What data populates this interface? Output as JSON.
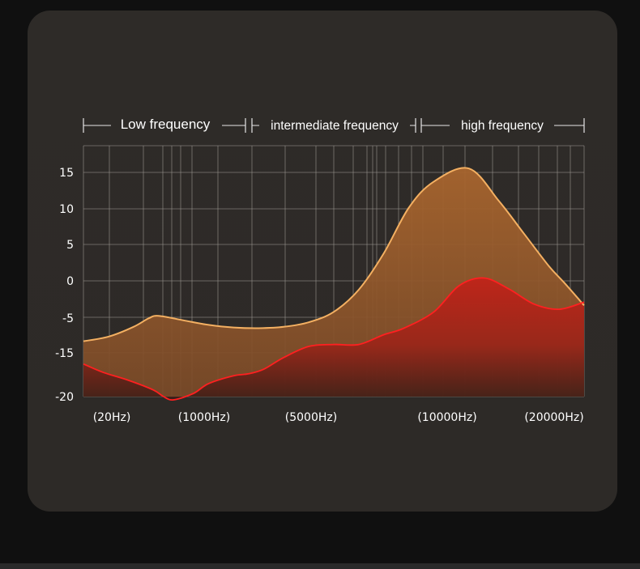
{
  "colors": {
    "page_background": "#101010",
    "card_background": "#2e2b28",
    "grid": "#9a9690",
    "text": "#ffffff",
    "orange_series_stroke": "#f4b062",
    "orange_series_fill": "#a8652e",
    "red_series_stroke": "#ff2020",
    "red_series_fill_top": "#c0241a",
    "red_series_fill_bottom": "#3a1c16"
  },
  "chart_data": {
    "type": "area",
    "title": "",
    "xlabel": "",
    "ylabel": "",
    "ylim": [
      -20,
      18.5
    ],
    "y_ticks": [
      15,
      10,
      5,
      0,
      -5,
      -15,
      -20
    ],
    "x_labels": [
      "(20Hz)",
      "(1000Hz)",
      "(5000Hz)",
      "(10000Hz)",
      "(20000Hz)"
    ],
    "bands": [
      {
        "label": "Low frequency"
      },
      {
        "label": "intermediate frequency"
      },
      {
        "label": "high frequency"
      }
    ],
    "grid": true,
    "series": [
      {
        "color": "orange",
        "points": [
          [
            0,
            -11.5
          ],
          [
            5,
            -10.8
          ],
          [
            10,
            -9.3
          ],
          [
            13,
            -8.0
          ],
          [
            15,
            -7.6
          ],
          [
            20,
            -8.3
          ],
          [
            25,
            -9.0
          ],
          [
            30,
            -9.4
          ],
          [
            35,
            -9.5
          ],
          [
            40,
            -9.3
          ],
          [
            45,
            -8.6
          ],
          [
            50,
            -7.0
          ],
          [
            55,
            -3.6
          ],
          [
            60,
            2.0
          ],
          [
            65,
            9.0
          ],
          [
            70,
            13.0
          ],
          [
            77,
            15.0
          ],
          [
            83,
            10.0
          ],
          [
            88,
            5.0
          ],
          [
            93,
            0.0
          ],
          [
            96,
            -2.5
          ],
          [
            100,
            -6.0
          ]
        ]
      },
      {
        "color": "red",
        "points": [
          [
            0,
            -15.0
          ],
          [
            4,
            -16.3
          ],
          [
            9,
            -17.5
          ],
          [
            14,
            -19.0
          ],
          [
            16,
            -20.0
          ],
          [
            18,
            -20.5
          ],
          [
            22,
            -19.5
          ],
          [
            25,
            -18.0
          ],
          [
            30,
            -16.8
          ],
          [
            33,
            -16.5
          ],
          [
            36,
            -15.8
          ],
          [
            40,
            -14.0
          ],
          [
            45,
            -12.3
          ],
          [
            50,
            -12.0
          ],
          [
            55,
            -12.0
          ],
          [
            60,
            -10.5
          ],
          [
            64,
            -9.5
          ],
          [
            70,
            -7.0
          ],
          [
            75,
            -3.0
          ],
          [
            80,
            -1.8
          ],
          [
            85,
            -3.5
          ],
          [
            90,
            -5.8
          ],
          [
            95,
            -6.6
          ],
          [
            100,
            -5.5
          ]
        ]
      }
    ]
  }
}
